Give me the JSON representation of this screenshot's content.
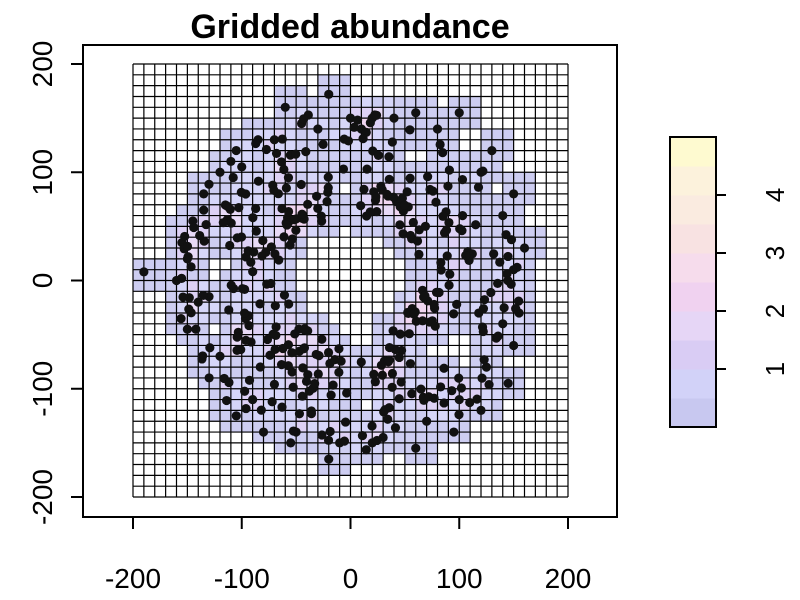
{
  "chart_data": {
    "type": "scatter",
    "title": "Gridded abundance",
    "xlabel": "",
    "ylabel": "",
    "xlim": [
      -200,
      200
    ],
    "ylim": [
      -200,
      200
    ],
    "x_ticks": [
      "-200",
      "-100",
      "0",
      "100",
      "200"
    ],
    "y_ticks": [
      "-200",
      "-100",
      "0",
      "100",
      "200"
    ],
    "grid": {
      "shown": true,
      "cell_size": 10
    },
    "legend": {
      "position": "right",
      "type": "colorbar",
      "range": [
        0,
        5
      ],
      "ticks": [
        "1",
        "2",
        "3",
        "4"
      ],
      "colors": [
        "#c8c8f0",
        "#d2d2f8",
        "#d9ccf4",
        "#e6d6f6",
        "#f0d2f0",
        "#f6dcec",
        "#f8e2e2",
        "#faebe0",
        "#fcf2dc",
        "#fefad0"
      ]
    },
    "point_color": "#111111",
    "rings": [
      {
        "name": "",
        "center": [
          0,
          0
        ],
        "radius_range": [
          60,
          160
        ],
        "n": 340
      }
    ],
    "points": [
      [
        -190,
        8
      ],
      [
        -135,
        80
      ],
      [
        -85,
        130
      ],
      [
        -60,
        160
      ],
      [
        -20,
        172
      ],
      [
        20,
        150
      ],
      [
        60,
        155
      ],
      [
        100,
        155
      ],
      [
        130,
        120
      ],
      [
        150,
        80
      ],
      [
        160,
        30
      ],
      [
        155,
        -30
      ],
      [
        150,
        -60
      ],
      [
        145,
        -95
      ],
      [
        120,
        -120
      ],
      [
        95,
        -140
      ],
      [
        60,
        -155
      ],
      [
        20,
        -150
      ],
      [
        -20,
        -165
      ],
      [
        -55,
        -150
      ],
      [
        -80,
        -140
      ],
      [
        -105,
        -125
      ],
      [
        -130,
        -90
      ],
      [
        -150,
        -45
      ],
      [
        -160,
        0
      ],
      [
        -155,
        35
      ],
      [
        -145,
        55
      ],
      [
        -120,
        100
      ],
      [
        -110,
        110
      ],
      [
        -45,
        145
      ],
      [
        0,
        150
      ],
      [
        40,
        150
      ],
      [
        80,
        140
      ],
      [
        120,
        100
      ],
      [
        140,
        60
      ],
      [
        150,
        10
      ],
      [
        140,
        -40
      ],
      [
        125,
        -80
      ],
      [
        100,
        -110
      ],
      [
        70,
        -130
      ],
      [
        30,
        -145
      ],
      [
        -10,
        -150
      ],
      [
        -50,
        -140
      ],
      [
        -90,
        -110
      ],
      [
        -120,
        -70
      ],
      [
        -140,
        -20
      ],
      [
        -150,
        20
      ],
      [
        -135,
        65
      ],
      [
        -100,
        105
      ],
      [
        -70,
        130
      ],
      [
        -30,
        140
      ],
      [
        10,
        140
      ]
    ]
  }
}
